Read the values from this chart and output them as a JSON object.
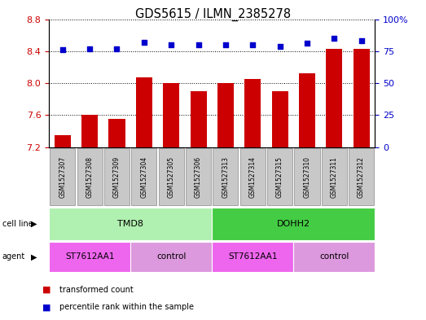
{
  "title": "GDS5615 / ILMN_2385278",
  "samples": [
    "GSM1527307",
    "GSM1527308",
    "GSM1527309",
    "GSM1527304",
    "GSM1527305",
    "GSM1527306",
    "GSM1527313",
    "GSM1527314",
    "GSM1527315",
    "GSM1527310",
    "GSM1527311",
    "GSM1527312"
  ],
  "transformed_count": [
    7.35,
    7.6,
    7.55,
    8.07,
    8.0,
    7.9,
    8.0,
    8.05,
    7.9,
    8.12,
    8.43,
    8.43
  ],
  "percentile_rank": [
    76,
    77,
    77,
    82,
    80,
    80,
    80,
    80,
    79,
    81,
    85,
    83
  ],
  "ylim_left": [
    7.2,
    8.8
  ],
  "ylim_right": [
    0,
    100
  ],
  "yticks_left": [
    7.2,
    7.6,
    8.0,
    8.4,
    8.8
  ],
  "yticks_right": [
    0,
    25,
    50,
    75,
    100
  ],
  "ytick_labels_right": [
    "0",
    "25",
    "50",
    "75",
    "100%"
  ],
  "cell_line_groups": [
    {
      "label": "TMD8",
      "start": 0,
      "end": 6,
      "color": "#B0F0B0"
    },
    {
      "label": "DOHH2",
      "start": 6,
      "end": 12,
      "color": "#44CC44"
    }
  ],
  "agent_groups": [
    {
      "label": "ST7612AA1",
      "start": 0,
      "end": 3,
      "color": "#EE66EE"
    },
    {
      "label": "control",
      "start": 3,
      "end": 6,
      "color": "#DD99DD"
    },
    {
      "label": "ST7612AA1",
      "start": 6,
      "end": 9,
      "color": "#EE66EE"
    },
    {
      "label": "control",
      "start": 9,
      "end": 12,
      "color": "#DD99DD"
    }
  ],
  "bar_color": "#CC0000",
  "dot_color": "#0000CC",
  "bar_bottom": 7.2,
  "tick_color_left": "#CC0000",
  "tick_color_right": "#0000CC",
  "xtick_bg_color": "#C8C8C8",
  "xtick_border_color": "#888888"
}
